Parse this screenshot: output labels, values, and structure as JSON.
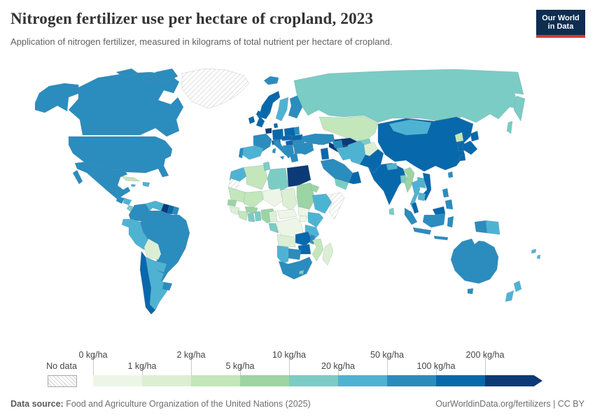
{
  "header": {
    "title": "Nitrogen fertilizer use per hectare of cropland, 2023",
    "subtitle": "Application of nitrogen fertilizer, measured in kilograms of total nutrient per hectare of cropland.",
    "logo": {
      "line1": "Our World",
      "line2": "in Data",
      "bg": "#0e2d51",
      "accent": "#d73b33"
    }
  },
  "legend": {
    "no_data_label": "No data",
    "labels": [
      "0 kg/ha",
      "1 kg/ha",
      "2 kg/ha",
      "5 kg/ha",
      "10 kg/ha",
      "20 kg/ha",
      "50 kg/ha",
      "100 kg/ha",
      "200 kg/ha"
    ]
  },
  "footer": {
    "source_label": "Data source:",
    "source_text": " Food and Agriculture Organization of the United Nations (2025)",
    "credit_text": "OurWorldinData.org/fertilizers | CC BY"
  },
  "chart_data": {
    "type": "choropleth",
    "title": "Nitrogen fertilizer use per hectare of cropland, 2023",
    "unit": "kg/ha",
    "year": 2023,
    "projection": "world",
    "legend_position": "bottom",
    "bin_colors": [
      "#edf6e6",
      "#dcefd3",
      "#c3e6bb",
      "#9cd4a4",
      "#7bccc4",
      "#4eb3d3",
      "#2b8cbe",
      "#0868ac",
      "#0b3a77"
    ],
    "bin_ranges": [
      "0–1",
      "1–2",
      "2–5",
      "5–10",
      "10–20",
      "20–50",
      "50–100",
      "100–200",
      "200+"
    ],
    "no_data_color": "hatched",
    "countries": {
      "greenland": 0,
      "western-sahara": 0,
      "somalia": 0,
      "canada": 7,
      "united-states": 7,
      "mexico": 7,
      "iceland": 7,
      "cuba": 3,
      "hispaniola": 6,
      "jamaica": 6,
      "guatemala": 7,
      "honduras": 6,
      "nicaragua": 5,
      "costa-rica": 9,
      "panama": 7,
      "colombia": 7,
      "venezuela": 6,
      "guyana": 9,
      "suriname": 8,
      "french-guiana": 7,
      "ecuador": 6,
      "peru": 6,
      "brazil": 7,
      "bolivia": 2,
      "paraguay": 6,
      "uruguay": 7,
      "argentina": 6,
      "chile": 8,
      "ireland": 8,
      "united-kingdom": 8,
      "norway": 8,
      "sweden": 6,
      "finland": 7,
      "denmark": 8,
      "netherlands-belgium": 9,
      "germany": 8,
      "france": 7,
      "portugal": 7,
      "spain": 6,
      "italy": 7,
      "switzerland-austria": 8,
      "czechia-slovakia": 8,
      "poland": 8,
      "baltics": 7,
      "belarus": 8,
      "ukraine": 7,
      "romania": 7,
      "hungary": 8,
      "balkans": 7,
      "bulgaria": 7,
      "greece": 7,
      "russia": 5,
      "kazakhstan": 3,
      "uzbekistan": 9,
      "turkmenistan": 9,
      "kyrgyzstan-tajikistan": 5,
      "caucasus": 6,
      "turkey": 7,
      "syria": 7,
      "iraq": 6,
      "iran": 6,
      "jordan-israel": 8,
      "saudi-arabia": 7,
      "yemen": 5,
      "oman": 8,
      "afghanistan": 2,
      "pakistan": 8,
      "morocco": 6,
      "algeria": 3,
      "tunisia": 5,
      "libya": 5,
      "egypt": 9,
      "mauritania": 3,
      "mali": 3,
      "senegal": 4,
      "guinea": 2,
      "west-african-coast": 3,
      "ghana": 5,
      "togo-benin": 5,
      "burkina-faso": 4,
      "niger": 1,
      "nigeria": 4,
      "chad": 2,
      "sudan": 4,
      "eritrea": 4,
      "ethiopia": 6,
      "cameroon": 2,
      "central-african-republic": 1,
      "south-sudan": 1,
      "uganda": 1,
      "kenya": 6,
      "democratic-republic-of-congo": 1,
      "gabon-congo": 5,
      "tanzania": 6,
      "angola": 2,
      "zambia": 8,
      "malawi": 7,
      "mozambique": 3,
      "zimbabwe": 8,
      "botswana": 7,
      "namibia": 6,
      "south-africa": 7,
      "lesotho": 5,
      "madagascar": 2,
      "india": 8,
      "nepal": 6,
      "bangladesh": 5,
      "sri-lanka": 5,
      "china": 8,
      "mongolia": 6,
      "north-korea": 3,
      "south-korea": 8,
      "japan": 8,
      "taiwan": 7,
      "myanmar": 4,
      "thailand": 6,
      "laos": 6,
      "vietnam": 8,
      "cambodia": 6,
      "malaysia": 8,
      "indonesia": 7,
      "philippines": 7,
      "papua-new-guinea": 6,
      "pacific-islands": 6,
      "australia": 7,
      "new-zealand": 6
    }
  }
}
